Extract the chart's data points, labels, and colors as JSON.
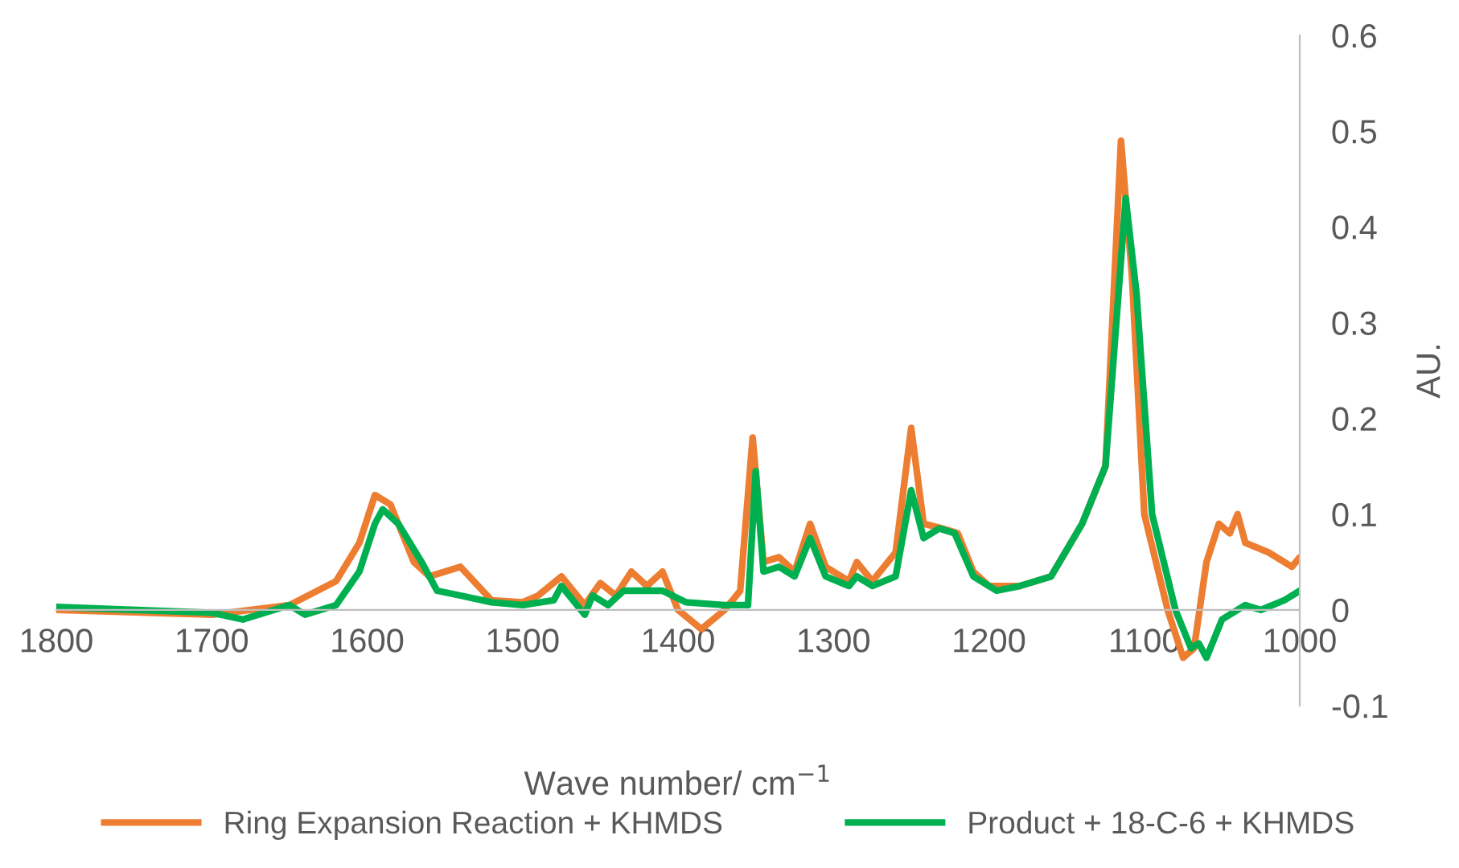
{
  "chart_data": {
    "type": "line",
    "xlabel": "Wave number/ cm$^{−1}$",
    "ylabel": "AU.",
    "xlim": [
      1800,
      1000
    ],
    "xticks": [
      1800,
      1700,
      1600,
      1500,
      1400,
      1300,
      1200,
      1100,
      1000
    ],
    "ylim": [
      -0.1,
      0.6
    ],
    "yticks": [
      -0.1,
      0,
      0.1,
      0.2,
      0.3,
      0.4,
      0.5,
      0.6
    ],
    "grid": false,
    "legend": "bottom",
    "marker": "none",
    "line_style": "solid",
    "series": [
      {
        "name": "Ring Expansion Reaction + KHMDS",
        "color": "#ed7d31",
        "x": [
          1800,
          1700,
          1650,
          1620,
          1605,
          1595,
          1585,
          1570,
          1560,
          1540,
          1520,
          1500,
          1490,
          1475,
          1460,
          1450,
          1440,
          1430,
          1420,
          1410,
          1400,
          1385,
          1370,
          1360,
          1352,
          1345,
          1335,
          1325,
          1315,
          1305,
          1290,
          1285,
          1275,
          1260,
          1250,
          1242,
          1230,
          1220,
          1210,
          1200,
          1180,
          1160,
          1140,
          1125,
          1115,
          1108,
          1100,
          1085,
          1075,
          1068,
          1060,
          1052,
          1045,
          1040,
          1035,
          1020,
          1005,
          1000
        ],
        "values": [
          0.0,
          -0.005,
          0.005,
          0.03,
          0.07,
          0.12,
          0.11,
          0.05,
          0.035,
          0.045,
          0.01,
          0.008,
          0.015,
          0.035,
          0.005,
          0.028,
          0.015,
          0.04,
          0.025,
          0.04,
          0.0,
          -0.02,
          0.0,
          0.02,
          0.18,
          0.05,
          0.055,
          0.04,
          0.09,
          0.045,
          0.03,
          0.05,
          0.03,
          0.06,
          0.19,
          0.09,
          0.085,
          0.08,
          0.04,
          0.025,
          0.025,
          0.035,
          0.09,
          0.15,
          0.49,
          0.35,
          0.1,
          0.0,
          -0.05,
          -0.04,
          0.05,
          0.09,
          0.08,
          0.1,
          0.07,
          0.06,
          0.045,
          0.055
        ]
      },
      {
        "name": "Product + 18-C-6 + KHMDS",
        "color": "#00b050",
        "x": [
          1800,
          1700,
          1680,
          1650,
          1640,
          1620,
          1605,
          1595,
          1590,
          1580,
          1565,
          1555,
          1540,
          1520,
          1500,
          1480,
          1475,
          1460,
          1455,
          1445,
          1435,
          1420,
          1410,
          1395,
          1370,
          1355,
          1350,
          1345,
          1335,
          1325,
          1315,
          1305,
          1290,
          1285,
          1275,
          1260,
          1250,
          1242,
          1232,
          1222,
          1210,
          1195,
          1180,
          1160,
          1140,
          1125,
          1112,
          1105,
          1095,
          1080,
          1070,
          1065,
          1060,
          1050,
          1035,
          1025,
          1010,
          1000
        ],
        "values": [
          0.003,
          -0.003,
          -0.01,
          0.005,
          -0.005,
          0.005,
          0.04,
          0.09,
          0.105,
          0.09,
          0.05,
          0.02,
          0.015,
          0.008,
          0.005,
          0.01,
          0.025,
          -0.005,
          0.015,
          0.005,
          0.02,
          0.02,
          0.02,
          0.008,
          0.005,
          0.005,
          0.145,
          0.04,
          0.045,
          0.035,
          0.075,
          0.035,
          0.025,
          0.035,
          0.025,
          0.035,
          0.125,
          0.075,
          0.085,
          0.08,
          0.035,
          0.02,
          0.025,
          0.035,
          0.09,
          0.15,
          0.43,
          0.33,
          0.1,
          0.0,
          -0.04,
          -0.035,
          -0.05,
          -0.01,
          0.005,
          0.0,
          0.01,
          0.02
        ]
      }
    ]
  }
}
